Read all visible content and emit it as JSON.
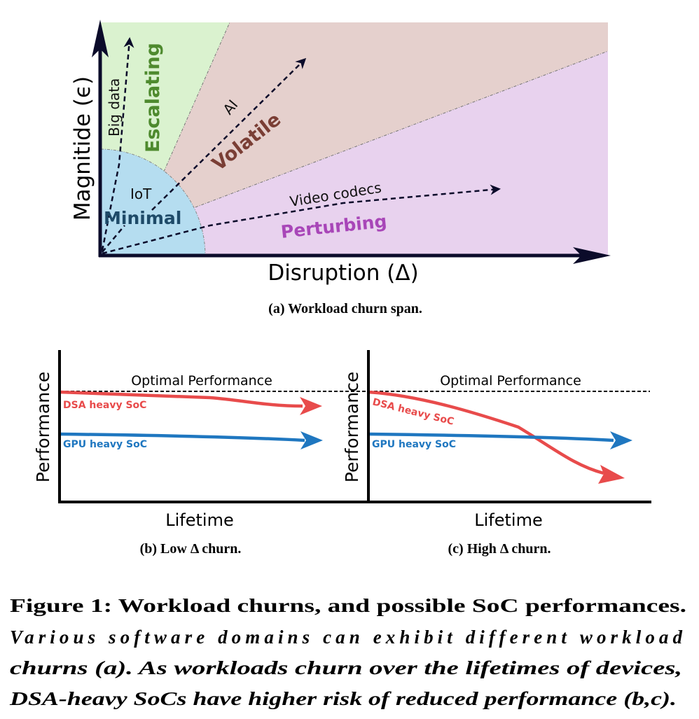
{
  "panel_a": {
    "y_axis_label": "Magnitide (ϵ)",
    "x_axis_label": "Disruption (Δ)",
    "regions": {
      "escalating": {
        "label": "Escalating",
        "fill": "#daf2cf",
        "text_color": "#4e8a2e"
      },
      "volatile": {
        "label": "Volatile",
        "fill": "#e5d0cd",
        "text_color": "#7a3e35"
      },
      "perturbing": {
        "label": "Perturbing",
        "fill": "#e8d2ee",
        "text_color": "#a846b8"
      },
      "minimal": {
        "label": "Minimal",
        "fill": "#b5ddf0",
        "text_color": "#1e4a68"
      }
    },
    "domains": [
      "Big data",
      "IoT",
      "AI",
      "Video codecs"
    ],
    "caption": "(a) Workload churn span."
  },
  "panel_b": {
    "y_axis_label": "Performance",
    "x_axis_label": "Lifetime",
    "optimal_label": "Optimal Performance",
    "dsa_label": "DSA heavy SoC",
    "gpu_label": "GPU heavy SoC",
    "caption": "(b) Low Δ churn."
  },
  "panel_c": {
    "y_axis_label": "Performance",
    "x_axis_label": "Lifetime",
    "optimal_label": "Optimal Performance",
    "dsa_label": "DSA heavy SoC",
    "gpu_label": "GPU heavy SoC",
    "caption": "(c) High Δ churn."
  },
  "colors": {
    "dsa": "#e84b4b",
    "gpu": "#1f77c0",
    "axis": "#0b0b2a"
  },
  "figure_caption": {
    "title": "Figure 1: Workload churns, and possible SoC performances.",
    "lines": [
      "Various software domains can exhibit different workload",
      "churns (a). As workloads churn over the lifetimes of devices,",
      "DSA-heavy SoCs have higher risk of reduced performance (b,c)."
    ]
  }
}
